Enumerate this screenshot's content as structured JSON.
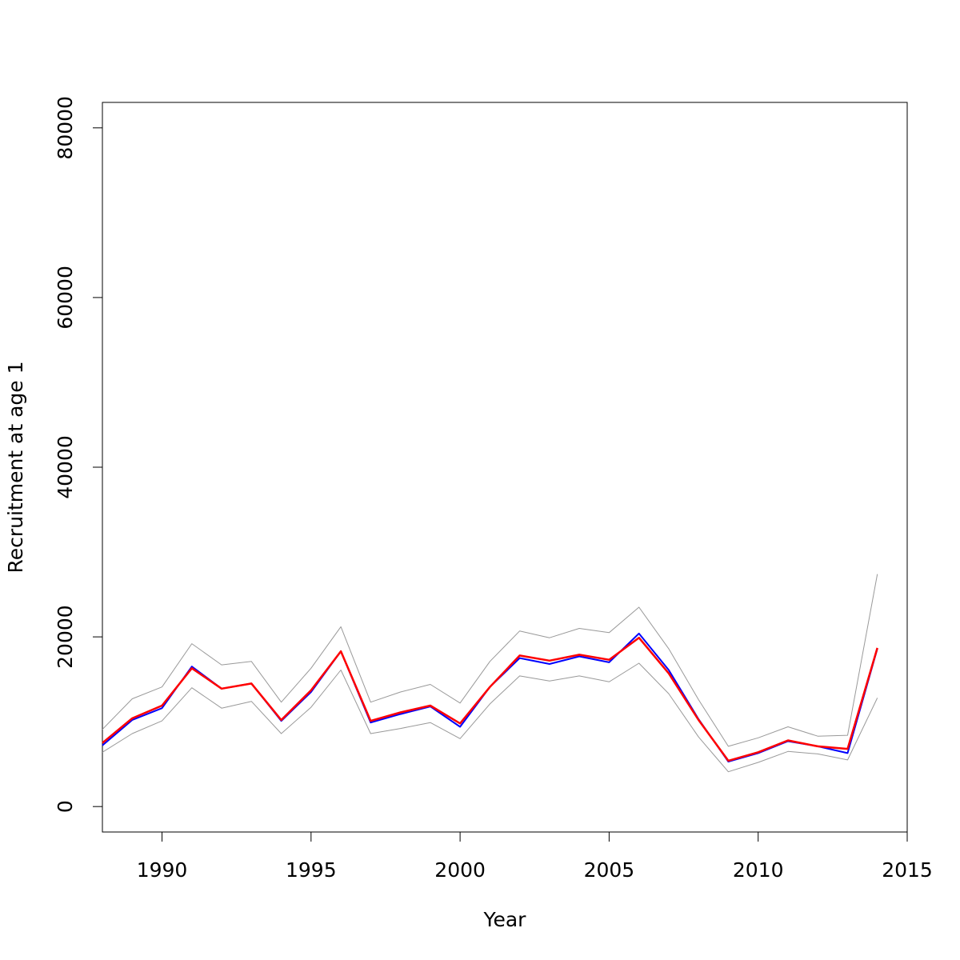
{
  "chart_data": {
    "type": "line",
    "title": "",
    "xlabel": "Year",
    "ylabel": "Recruitment at age 1",
    "xlim": [
      1988,
      2015
    ],
    "ylim": [
      -3000,
      83000
    ],
    "x_ticks": [
      1990,
      1995,
      2000,
      2005,
      2010,
      2015
    ],
    "y_ticks": [
      0,
      20000,
      40000,
      60000,
      80000
    ],
    "grid": false,
    "legend": "none",
    "x": [
      1988,
      1989,
      1990,
      1991,
      1992,
      1993,
      1994,
      1995,
      1996,
      1997,
      1998,
      1999,
      2000,
      2001,
      2002,
      2003,
      2004,
      2005,
      2006,
      2007,
      2008,
      2009,
      2010,
      2011,
      2012,
      2013,
      2014
    ],
    "series": [
      {
        "color": "#999999",
        "width": 1,
        "values": [
          9100,
          12700,
          14100,
          19200,
          16700,
          17100,
          12300,
          16300,
          21200,
          12300,
          13500,
          14400,
          12200,
          17100,
          20700,
          19900,
          21000,
          20500,
          23500,
          18600,
          12600,
          7100,
          8100,
          9400,
          8300,
          8400,
          27400
        ]
      },
      {
        "color": "#999999",
        "width": 1,
        "values": [
          6400,
          8600,
          10100,
          14000,
          11600,
          12400,
          8600,
          11700,
          16100,
          8600,
          9200,
          9900,
          8000,
          12100,
          15400,
          14800,
          15400,
          14700,
          16900,
          13300,
          8200,
          4100,
          5200,
          6500,
          6200,
          5500,
          12800
        ]
      },
      {
        "color": "#0000ff",
        "width": 2,
        "values": [
          7200,
          10200,
          11600,
          16500,
          13900,
          14500,
          10100,
          13500,
          18300,
          9900,
          10900,
          11800,
          9400,
          14100,
          17500,
          16800,
          17700,
          17000,
          20400,
          16100,
          10300,
          5300,
          6300,
          7700,
          7100,
          6300,
          18600
        ]
      },
      {
        "color": "#ff0000",
        "width": 2.5,
        "values": [
          7500,
          10400,
          11900,
          16300,
          13900,
          14500,
          10200,
          13700,
          18300,
          10100,
          11100,
          11900,
          9800,
          14100,
          17800,
          17200,
          17900,
          17300,
          19900,
          15700,
          10200,
          5400,
          6400,
          7800,
          7100,
          6800,
          18700
        ]
      }
    ]
  }
}
